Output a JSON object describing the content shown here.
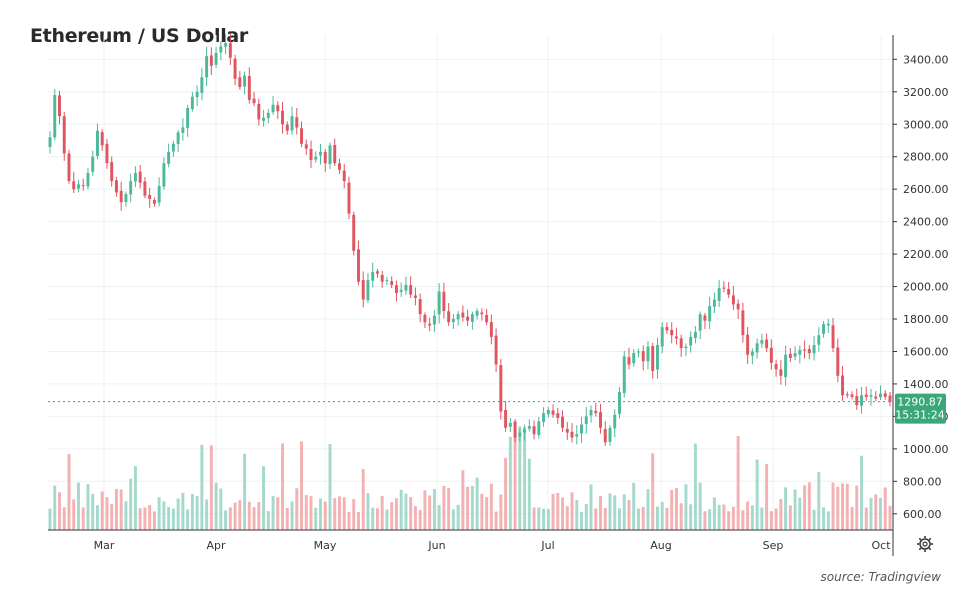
{
  "title": "Ethereum / US Dollar",
  "source": "source: Tradingview",
  "colors": {
    "up": "#4db89a",
    "down": "#e0555f",
    "up_volume": "#9ad5c6",
    "down_volume": "#f2a8aa",
    "grid": "#eef1f4",
    "axis": "#333333",
    "last_price": "#3aa77a"
  },
  "price_axis": {
    "ticks": [
      "600.00",
      "800.00",
      "1000.00",
      "1200.00",
      "1400.00",
      "1600.00",
      "1800.00",
      "2000.00",
      "2200.00",
      "2400.00",
      "2600.00",
      "2800.00",
      "3000.00",
      "3200.00",
      "3400.00"
    ]
  },
  "last_price": {
    "value": "1290.87",
    "countdown": "15:31:24"
  },
  "settings_icon": "gear-icon",
  "chart_data": {
    "type": "candlestick",
    "title": "Ethereum / US Dollar",
    "x_ticks": [
      "Mar",
      "Apr",
      "May",
      "Jun",
      "Jul",
      "Aug",
      "Sep",
      "Oct"
    ],
    "y_range": [
      500,
      3550
    ],
    "grid": true,
    "closes": [
      2920,
      3180,
      3050,
      2820,
      2650,
      2600,
      2630,
      2620,
      2700,
      2800,
      2960,
      2870,
      2760,
      2650,
      2580,
      2520,
      2570,
      2650,
      2700,
      2640,
      2560,
      2540,
      2510,
      2620,
      2760,
      2830,
      2880,
      2950,
      2980,
      3100,
      3170,
      3200,
      3290,
      3420,
      3360,
      3440,
      3480,
      3500,
      3410,
      3280,
      3230,
      3300,
      3150,
      3130,
      3030,
      3040,
      3070,
      3120,
      3080,
      3000,
      2960,
      3050,
      2980,
      2880,
      2850,
      2780,
      2800,
      2830,
      2760,
      2870,
      2760,
      2720,
      2650,
      2450,
      2220,
      2030,
      1920,
      2040,
      2090,
      2080,
      2030,
      2040,
      2010,
      1960,
      1980,
      2010,
      1950,
      1930,
      1830,
      1780,
      1760,
      1820,
      1970,
      1850,
      1780,
      1800,
      1830,
      1810,
      1790,
      1830,
      1850,
      1830,
      1780,
      1690,
      1520,
      1230,
      1130,
      1160,
      1070,
      1100,
      1120,
      1140,
      1090,
      1170,
      1220,
      1240,
      1210,
      1190,
      1130,
      1100,
      1070,
      1090,
      1150,
      1200,
      1240,
      1220,
      1130,
      1040,
      1130,
      1210,
      1350,
      1570,
      1520,
      1590,
      1600,
      1540,
      1630,
      1480,
      1640,
      1750,
      1730,
      1700,
      1680,
      1620,
      1630,
      1690,
      1720,
      1830,
      1790,
      1880,
      1920,
      1990,
      1990,
      1950,
      1890,
      1860,
      1700,
      1580,
      1600,
      1650,
      1670,
      1620,
      1530,
      1490,
      1450,
      1580,
      1560,
      1590,
      1610,
      1610,
      1590,
      1640,
      1700,
      1770,
      1770,
      1620,
      1450,
      1330,
      1330,
      1320,
      1270,
      1330,
      1320,
      1330,
      1310,
      1340,
      1320,
      1290
    ]
  }
}
